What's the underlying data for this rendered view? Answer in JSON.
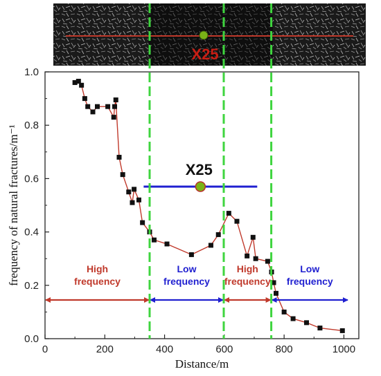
{
  "chart_data": {
    "type": "line",
    "xlabel": "Distance/m",
    "ylabel": "frequency of natural fractures/m⁻¹",
    "xlim": [
      0,
      1050
    ],
    "ylim": [
      0,
      1.0
    ],
    "xticks": [
      0,
      200,
      400,
      600,
      800,
      1000
    ],
    "yticks": [
      0.0,
      0.2,
      0.4,
      0.6,
      0.8,
      1.0
    ],
    "xtick_labels": [
      "0",
      "200",
      "400",
      "600",
      "800",
      "1000"
    ],
    "ytick_labels": [
      "0.0",
      "0.2",
      "0.4",
      "0.6",
      "0.8",
      "1.0"
    ],
    "grid": false,
    "series": [
      {
        "marker": "square",
        "line_color": "#c0392b",
        "marker_color": "#111111",
        "x": [
          100,
          112,
          122,
          133,
          143,
          160,
          175,
          210,
          230,
          233,
          237,
          248,
          260,
          280,
          292,
          298,
          314,
          326,
          350,
          365,
          408,
          490,
          555,
          580,
          615,
          642,
          676,
          696,
          705,
          745,
          758,
          765,
          773,
          800,
          830,
          875,
          920,
          995
        ],
        "y": [
          0.96,
          0.965,
          0.95,
          0.9,
          0.87,
          0.85,
          0.87,
          0.87,
          0.83,
          0.87,
          0.895,
          0.68,
          0.615,
          0.55,
          0.51,
          0.56,
          0.52,
          0.435,
          0.4,
          0.37,
          0.355,
          0.315,
          0.35,
          0.39,
          0.47,
          0.44,
          0.31,
          0.38,
          0.3,
          0.29,
          0.25,
          0.21,
          0.17,
          0.1,
          0.075,
          0.06,
          0.04,
          0.03
        ]
      }
    ],
    "dividers_x": [
      350,
      598,
      757
    ],
    "segments": [
      {
        "lines": [
          "High",
          "frequency"
        ],
        "x_start": 0,
        "x_end": 350,
        "color": "#c0392b"
      },
      {
        "lines": [
          "Low",
          "frequency"
        ],
        "x_start": 350,
        "x_end": 598,
        "color": "#1f1fd0"
      },
      {
        "lines": [
          "High",
          "frequency"
        ],
        "x_start": 598,
        "x_end": 757,
        "color": "#c0392b"
      },
      {
        "lines": [
          "Low",
          "frequency"
        ],
        "x_start": 757,
        "x_end": 1015,
        "color": "#1f1fd0"
      }
    ],
    "segment_arrow_y": 0.145,
    "well": {
      "label": "X25",
      "x": 520,
      "y": 0.57,
      "line_x": [
        330,
        710
      ],
      "line_color": "#1f1fd0",
      "marker_color": "#7ab317"
    }
  },
  "header_image": {
    "label": "X25",
    "label_color": "#c81e14",
    "well_marker_color": "#7ab317",
    "line_color": "#c0392b"
  }
}
